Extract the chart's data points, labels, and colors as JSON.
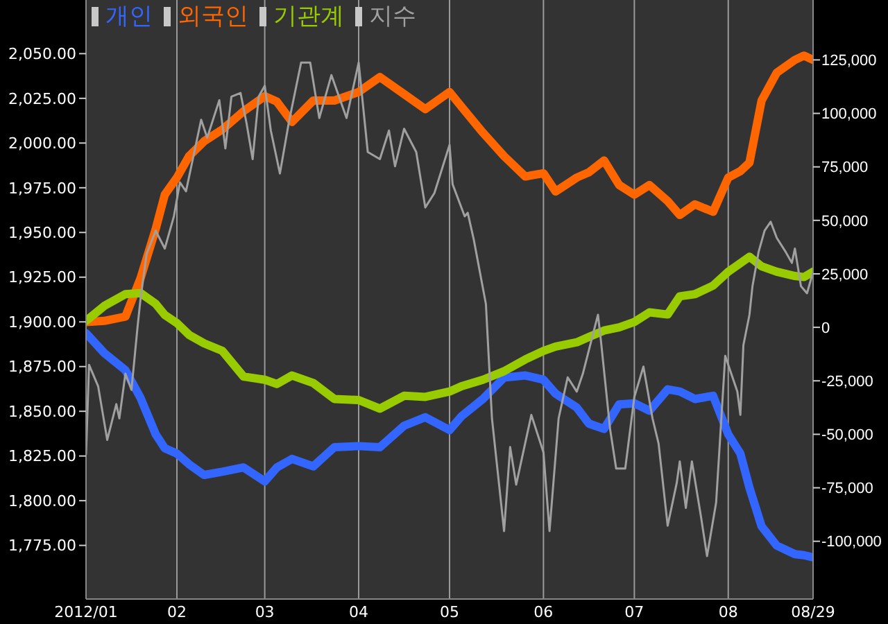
{
  "chart_data": {
    "type": "line",
    "legend": "top left",
    "grid": "x",
    "xlim": [
      "2012-01-02",
      "2012-08-29"
    ],
    "xticks": [
      {
        "value": "2012-01-02",
        "label": "2012/01"
      },
      {
        "value": "2012-02-01",
        "label": "02"
      },
      {
        "value": "2012-03-01",
        "label": "03"
      },
      {
        "value": "2012-04-01",
        "label": "04"
      },
      {
        "value": "2012-05-01",
        "label": "05"
      },
      {
        "value": "2012-06-01",
        "label": "06"
      },
      {
        "value": "2012-07-01",
        "label": "07"
      },
      {
        "value": "2012-08-01",
        "label": "08"
      },
      {
        "value": "2012-08-29",
        "label": "08/29"
      }
    ],
    "ylim": [
      1745,
      2080
    ],
    "yticks": [
      {
        "value": 1775,
        "label": "1,775.00"
      },
      {
        "value": 1800,
        "label": "1,800.00"
      },
      {
        "value": 1825,
        "label": "1,825.00"
      },
      {
        "value": 1850,
        "label": "1,850.00"
      },
      {
        "value": 1875,
        "label": "1,875.00"
      },
      {
        "value": 1900,
        "label": "1,900.00"
      },
      {
        "value": 1925,
        "label": "1,925.00"
      },
      {
        "value": 1950,
        "label": "1,950.00"
      },
      {
        "value": 1975,
        "label": "1,975.00"
      },
      {
        "value": 2000,
        "label": "2,000.00"
      },
      {
        "value": 2025,
        "label": "2,025.00"
      },
      {
        "value": 2050,
        "label": "2,050.00"
      }
    ],
    "y2lim": [
      -127000,
      153000
    ],
    "y2ticks": [
      {
        "value": -100000,
        "label": "-100,000"
      },
      {
        "value": -75000,
        "label": "-75,000"
      },
      {
        "value": -50000,
        "label": "-50,000"
      },
      {
        "value": -25000,
        "label": "-25,000"
      },
      {
        "value": 0,
        "label": "0"
      },
      {
        "value": 25000,
        "label": "25,000"
      },
      {
        "value": 50000,
        "label": "50,000"
      },
      {
        "value": 75000,
        "label": "75,000"
      },
      {
        "value": 100000,
        "label": "100,000"
      },
      {
        "value": 125000,
        "label": "125,000"
      }
    ],
    "x": [
      "2012-01-02",
      "2012-01-08",
      "2012-01-15",
      "2012-01-20",
      "2012-01-25",
      "2012-01-28",
      "2012-02-01",
      "2012-02-05",
      "2012-02-10",
      "2012-02-16",
      "2012-02-23",
      "2012-03-01",
      "2012-03-05",
      "2012-03-10",
      "2012-03-17",
      "2012-03-24",
      "2012-04-01",
      "2012-04-08",
      "2012-04-16",
      "2012-04-23",
      "2012-05-01",
      "2012-05-05",
      "2012-05-12",
      "2012-05-19",
      "2012-05-26",
      "2012-06-01",
      "2012-06-05",
      "2012-06-12",
      "2012-06-16",
      "2012-06-21",
      "2012-06-26",
      "2012-07-01",
      "2012-07-06",
      "2012-07-12",
      "2012-07-16",
      "2012-07-21",
      "2012-07-27",
      "2012-08-01",
      "2012-08-05",
      "2012-08-08",
      "2012-08-12",
      "2012-08-17",
      "2012-08-23",
      "2012-08-26",
      "2012-08-29"
    ],
    "series": [
      {
        "name": "개인",
        "color": "#3366ff",
        "axis": "y2",
        "values": [
          -2700,
          -12000,
          -20000,
          -33000,
          -50000,
          -56500,
          -59000,
          -64000,
          -69000,
          -67500,
          -65500,
          -72000,
          -65500,
          -61500,
          -65000,
          -56000,
          -55500,
          -56000,
          -46000,
          -42000,
          -48000,
          -41500,
          -33500,
          -23500,
          -22500,
          -24500,
          -31000,
          -37500,
          -45000,
          -47500,
          -36000,
          -35500,
          -39000,
          -29000,
          -30000,
          -33500,
          -32000,
          -50000,
          -59000,
          -75000,
          -93000,
          -102000,
          -106000,
          -106500,
          -107500
        ]
      },
      {
        "name": "외국인",
        "color": "#ff6600",
        "axis": "y2",
        "values": [
          2500,
          3000,
          5000,
          23000,
          46000,
          62000,
          70000,
          80000,
          87000,
          92500,
          101000,
          108000,
          105500,
          96000,
          106000,
          106000,
          110000,
          117000,
          109000,
          102000,
          110000,
          103000,
          91000,
          80000,
          70500,
          72000,
          63500,
          70000,
          72500,
          78000,
          66500,
          62000,
          66500,
          59000,
          52500,
          57500,
          54000,
          70000,
          73000,
          77000,
          106000,
          119000,
          125000,
          127000,
          125000
        ]
      },
      {
        "name": "기관계",
        "color": "#99cc00",
        "axis": "y2",
        "values": [
          3000,
          10000,
          15500,
          16000,
          11000,
          5800,
          2000,
          -3500,
          -7500,
          -11000,
          -23000,
          -24500,
          -26500,
          -22500,
          -26000,
          -33500,
          -34000,
          -38000,
          -32000,
          -32500,
          -30000,
          -27500,
          -24500,
          -20500,
          -15000,
          -11000,
          -9000,
          -7000,
          -4500,
          -1500,
          0,
          2500,
          7000,
          6000,
          14500,
          15500,
          19500,
          26000,
          30000,
          33000,
          28500,
          26000,
          24000,
          23500,
          26000
        ]
      },
      {
        "name": "지수",
        "color": "#a0a0a0",
        "axis": "y",
        "x": [
          "2012-01-02",
          "2012-01-03",
          "2012-01-06",
          "2012-01-09",
          "2012-01-12",
          "2012-01-13",
          "2012-01-15",
          "2012-01-17",
          "2012-01-19",
          "2012-01-20",
          "2012-01-22",
          "2012-01-25",
          "2012-01-28",
          "2012-01-31",
          "2012-02-02",
          "2012-02-04",
          "2012-02-09",
          "2012-02-11",
          "2012-02-15",
          "2012-02-17",
          "2012-02-19",
          "2012-02-22",
          "2012-02-24",
          "2012-02-26",
          "2012-02-28",
          "2012-03-01",
          "2012-03-03",
          "2012-03-06",
          "2012-03-09",
          "2012-03-13",
          "2012-03-16",
          "2012-03-19",
          "2012-03-23",
          "2012-03-28",
          "2012-04-01",
          "2012-04-04",
          "2012-04-08",
          "2012-04-11",
          "2012-04-13",
          "2012-04-16",
          "2012-04-20",
          "2012-04-23",
          "2012-04-26",
          "2012-05-01",
          "2012-05-02",
          "2012-05-06",
          "2012-05-07",
          "2012-05-09",
          "2012-05-13",
          "2012-05-15",
          "2012-05-19",
          "2012-05-21",
          "2012-05-23",
          "2012-05-28",
          "2012-06-01",
          "2012-06-03",
          "2012-06-06",
          "2012-06-09",
          "2012-06-12",
          "2012-06-14",
          "2012-06-19",
          "2012-06-20",
          "2012-06-23",
          "2012-06-25",
          "2012-06-28",
          "2012-07-01",
          "2012-07-04",
          "2012-07-07",
          "2012-07-09",
          "2012-07-12",
          "2012-07-15",
          "2012-07-16",
          "2012-07-18",
          "2012-07-20",
          "2012-07-23",
          "2012-07-25",
          "2012-07-28",
          "2012-07-31",
          "2012-08-04",
          "2012-08-05",
          "2012-08-06",
          "2012-08-08",
          "2012-08-09",
          "2012-08-11",
          "2012-08-13",
          "2012-08-15",
          "2012-08-17",
          "2012-08-20",
          "2012-08-22",
          "2012-08-23",
          "2012-08-25",
          "2012-08-27",
          "2012-08-29"
        ],
        "values": [
          1826,
          1876,
          1864,
          1834,
          1854,
          1846,
          1871,
          1862,
          1897,
          1913,
          1938,
          1951,
          1941,
          1959,
          1978,
          1973,
          2013,
          2003,
          2024,
          1997,
          2026,
          2028,
          2011,
          1991,
          2026,
          2032,
          2007,
          1983,
          2012,
          2045,
          2045,
          2014,
          2038,
          2014,
          2045,
          1995,
          1991,
          2007,
          1987,
          2008,
          1995,
          1964,
          1972,
          1999,
          1977,
          1959,
          1961,
          1946,
          1910,
          1846,
          1783,
          1830,
          1809,
          1848,
          1827,
          1783,
          1846,
          1869,
          1861,
          1871,
          1904,
          1889,
          1840,
          1818,
          1818,
          1858,
          1875,
          1846,
          1832,
          1786,
          1810,
          1822,
          1796,
          1822,
          1791,
          1769,
          1799,
          1881,
          1861,
          1848,
          1887,
          1904,
          1920,
          1939,
          1951,
          1956,
          1947,
          1939,
          1933,
          1941,
          1920,
          1916,
          1928
        ]
      }
    ]
  }
}
